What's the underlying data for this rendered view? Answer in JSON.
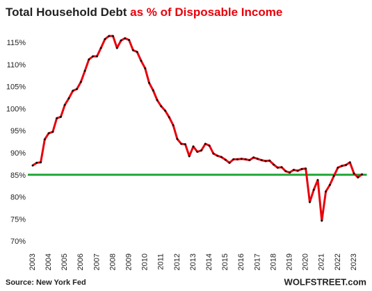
{
  "chart_data": {
    "type": "line",
    "title": "Total Household Debt",
    "title_highlight": "as % of Disposable Income",
    "source": "Source: New York Fed",
    "watermark": "WOLFSTREET.com",
    "x": [
      2003,
      2003.25,
      2003.5,
      2003.75,
      2004,
      2004.25,
      2004.5,
      2004.75,
      2005,
      2005.25,
      2005.5,
      2005.75,
      2006,
      2006.25,
      2006.5,
      2006.75,
      2007,
      2007.25,
      2007.5,
      2007.75,
      2008,
      2008.25,
      2008.5,
      2008.75,
      2009,
      2009.25,
      2009.5,
      2009.75,
      2010,
      2010.25,
      2010.5,
      2010.75,
      2011,
      2011.25,
      2011.5,
      2011.75,
      2012,
      2012.25,
      2012.5,
      2012.75,
      2013,
      2013.25,
      2013.5,
      2013.75,
      2014,
      2014.25,
      2014.5,
      2014.75,
      2015,
      2015.25,
      2015.5,
      2015.75,
      2016,
      2016.25,
      2016.5,
      2016.75,
      2017,
      2017.25,
      2017.5,
      2017.75,
      2018,
      2018.25,
      2018.5,
      2018.75,
      2019,
      2019.25,
      2019.5,
      2019.75,
      2020,
      2020.25,
      2020.5,
      2020.75,
      2021,
      2021.25,
      2021.5,
      2021.75,
      2022,
      2022.25,
      2022.5,
      2022.75,
      2023,
      2023.25,
      2023.5
    ],
    "series": [
      {
        "name": "Household debt as % of disposable income",
        "color": "#e8000b",
        "marker_color": "#111",
        "values": [
          87.3,
          87.9,
          88.0,
          93.2,
          94.6,
          94.9,
          98.0,
          98.3,
          101.0,
          102.5,
          104.2,
          104.6,
          106.2,
          108.7,
          111.3,
          112.0,
          112.0,
          113.9,
          115.9,
          116.6,
          116.6,
          113.9,
          115.6,
          116.1,
          115.7,
          113.4,
          113.0,
          111.0,
          109.3,
          106.0,
          104.3,
          102.1,
          100.7,
          99.7,
          98.2,
          96.4,
          93.3,
          92.2,
          92.1,
          89.4,
          91.6,
          90.4,
          90.7,
          92.2,
          91.8,
          90.0,
          89.5,
          89.2,
          88.6,
          87.9,
          88.7,
          88.7,
          88.8,
          88.7,
          88.5,
          89.1,
          88.8,
          88.5,
          88.3,
          88.4,
          87.5,
          86.8,
          86.9,
          86.0,
          85.7,
          86.3,
          86.1,
          86.5,
          86.6,
          79.0,
          81.8,
          84.0,
          74.8,
          81.4,
          82.9,
          84.9,
          86.8,
          87.2,
          87.4,
          88.0,
          85.5,
          84.6,
          85.3
        ]
      }
    ],
    "reference_line": {
      "value": 85.2,
      "color": "#22a83a"
    },
    "xlim": [
      2002.9,
      2023.8
    ],
    "xticks": [
      2003,
      2004,
      2005,
      2006,
      2007,
      2008,
      2009,
      2010,
      2011,
      2012,
      2013,
      2014,
      2015,
      2016,
      2017,
      2018,
      2019,
      2020,
      2021,
      2022,
      2023
    ],
    "ylim": [
      68,
      118
    ],
    "yticks": [
      {
        "value": 70,
        "label": "70%"
      },
      {
        "value": 75,
        "label": "75%"
      },
      {
        "value": 80,
        "label": "80%"
      },
      {
        "value": 85,
        "label": "85%"
      },
      {
        "value": 90,
        "label": "90%"
      },
      {
        "value": 95,
        "label": "95%"
      },
      {
        "value": 100,
        "label": "100%"
      },
      {
        "value": 105,
        "label": "105%"
      },
      {
        "value": 110,
        "label": "110%"
      },
      {
        "value": 115,
        "label": "115%"
      }
    ],
    "grid": false
  }
}
